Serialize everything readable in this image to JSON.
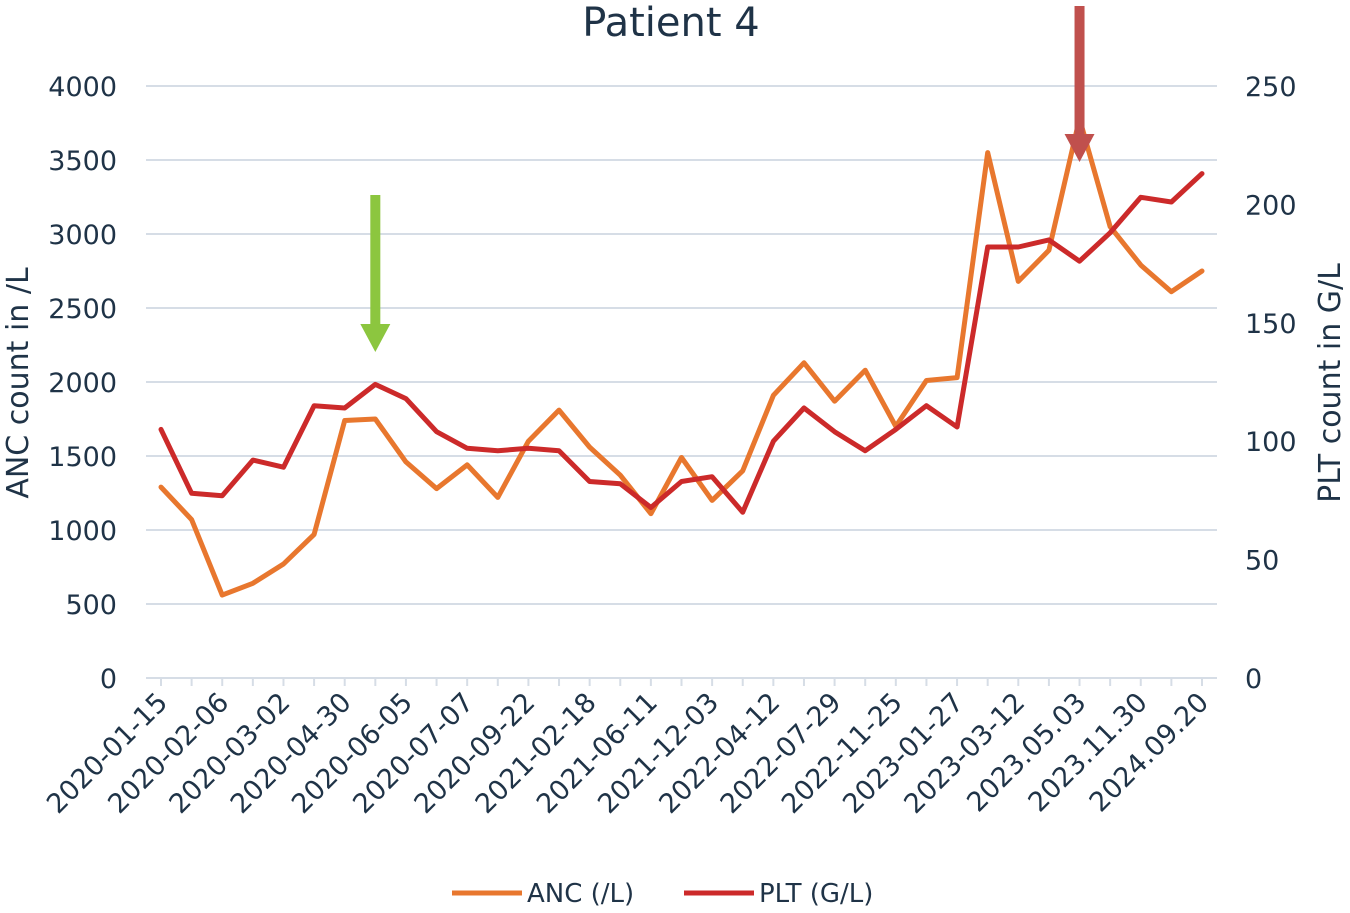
{
  "chart_data": {
    "type": "line",
    "title": "Patient 4",
    "ylabel": "ANC count in /L",
    "y2label": "PLT count in G/L",
    "xlabel": "",
    "ylim": [
      0,
      4000
    ],
    "y2lim": [
      0,
      250
    ],
    "yticks": [
      "0",
      "500",
      "1000",
      "1500",
      "2000",
      "2500",
      "3000",
      "3500",
      "4000"
    ],
    "y2ticks": [
      "0",
      "50",
      "100",
      "150",
      "200",
      "250"
    ],
    "x_tick_labels": [
      "2020-01-15",
      "2020-02-06",
      "2020-03-02",
      "2020-04-30",
      "2020-06-05",
      "2020-07-07",
      "2020-09-22",
      "2021-02-18",
      "2021-06-11",
      "2021-12-03",
      "2022-04-12",
      "2022-07-29",
      "2022-11-25",
      "2023-01-27",
      "2023-03-12",
      "2023.05.03",
      "2023.11.30",
      "2024.09.20"
    ],
    "grid": true,
    "legend_position": "bottom",
    "series": [
      {
        "name": "ANC (/L)",
        "axis": "left",
        "color": "#e8772e",
        "values": [
          1290,
          1070,
          560,
          640,
          770,
          970,
          1740,
          1750,
          1460,
          1280,
          1440,
          1220,
          1600,
          1810,
          1560,
          1370,
          1110,
          1490,
          1200,
          1400,
          1910,
          2130,
          1870,
          2080,
          1700,
          2010,
          2030,
          3550,
          2680,
          2890,
          3780,
          3050,
          2790,
          2610,
          2750
        ]
      },
      {
        "name": "PLT (G/L)",
        "axis": "right",
        "color": "#cc2a2a",
        "values": [
          105,
          78,
          77,
          92,
          89,
          115,
          114,
          124,
          118,
          104,
          97,
          96,
          97,
          96,
          83,
          82,
          72,
          83,
          85,
          70,
          100,
          114,
          104,
          96,
          105,
          115,
          106,
          182,
          182,
          185,
          176,
          188,
          203,
          201,
          213
        ]
      }
    ],
    "annotations": [
      {
        "type": "arrow",
        "direction": "down",
        "color": "#8cc63f",
        "at_index": 7,
        "meaning": "green marker arrow"
      },
      {
        "type": "arrow",
        "direction": "down",
        "color": "#c0504d",
        "at_index": 30,
        "meaning": "red marker arrow"
      }
    ]
  }
}
